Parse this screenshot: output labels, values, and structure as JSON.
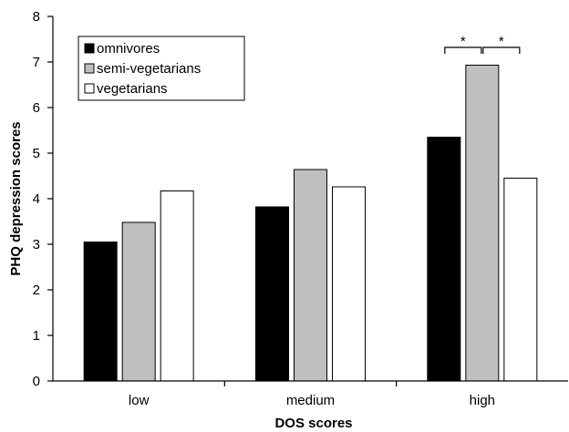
{
  "chart_data": {
    "type": "bar",
    "title": "",
    "xlabel": "DOS scores",
    "ylabel": "PHQ depression scores",
    "ylim": [
      0,
      8
    ],
    "yticks": [
      0,
      1,
      2,
      3,
      4,
      5,
      6,
      7,
      8
    ],
    "categories": [
      "low",
      "medium",
      "high"
    ],
    "series": [
      {
        "name": "omnivores",
        "color": "#000000",
        "values": [
          3.05,
          3.82,
          5.35
        ]
      },
      {
        "name": "semi-vegetarians",
        "color": "#bfbfbf",
        "values": [
          3.48,
          4.64,
          6.93
        ]
      },
      {
        "name": "vegetarians",
        "color": "#ffffff",
        "values": [
          4.17,
          4.26,
          4.45
        ]
      }
    ],
    "legend_position": "top-left",
    "grid": false,
    "annotations": [
      {
        "category": "high",
        "from_series": 0,
        "to_series": 1,
        "text": "*"
      },
      {
        "category": "high",
        "from_series": 1,
        "to_series": 2,
        "text": "*"
      }
    ]
  }
}
